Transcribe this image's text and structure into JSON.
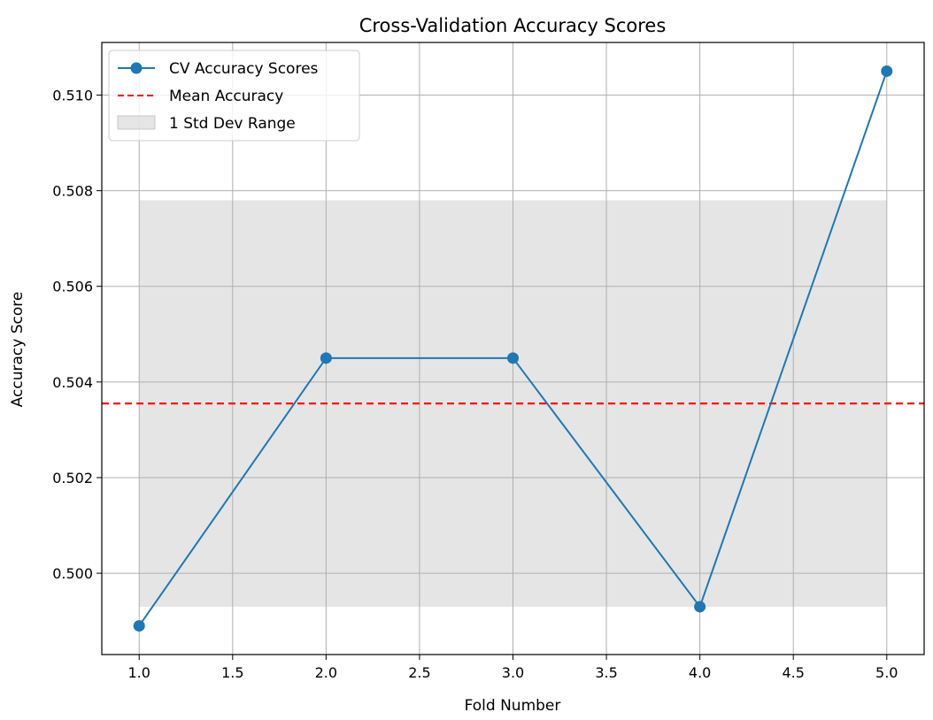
{
  "chart_data": {
    "type": "line",
    "title": "Cross-Validation Accuracy Scores",
    "xlabel": "Fold Number",
    "ylabel": "Accuracy Score",
    "xlim": [
      0.8,
      5.2
    ],
    "ylim": [
      0.4983,
      0.5111
    ],
    "xticks": [
      1.0,
      1.5,
      2.0,
      2.5,
      3.0,
      3.5,
      4.0,
      4.5,
      5.0
    ],
    "xtick_labels": [
      "1.0",
      "1.5",
      "2.0",
      "2.5",
      "3.0",
      "3.5",
      "4.0",
      "4.5",
      "5.0"
    ],
    "yticks": [
      0.5,
      0.502,
      0.504,
      0.506,
      0.508,
      0.51
    ],
    "ytick_labels": [
      "0.500",
      "0.502",
      "0.504",
      "0.506",
      "0.508",
      "0.510"
    ],
    "grid": true,
    "legend_position": "top-left",
    "series": [
      {
        "name": "CV Accuracy Scores",
        "style": "line-with-markers",
        "color": "#1f77b4",
        "x": [
          1,
          2,
          3,
          4,
          5
        ],
        "values": [
          0.4989,
          0.5045,
          0.5045,
          0.4993,
          0.5105
        ]
      }
    ],
    "mean_line": {
      "name": "Mean Accuracy",
      "style": "dashed",
      "color": "#ff0000",
      "value": 0.50355
    },
    "std_band": {
      "name": "1 Std Dev Range",
      "color": "#d3d3d3",
      "x_range": [
        1,
        5
      ],
      "lower": 0.4993,
      "upper": 0.5078
    }
  }
}
